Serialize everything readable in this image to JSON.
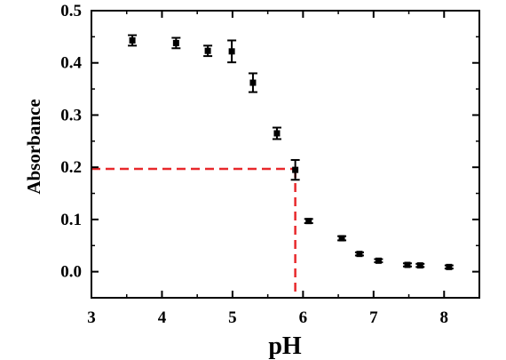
{
  "chart_data": {
    "type": "scatter",
    "title": "",
    "xlabel": "pH",
    "ylabel": "Absorbance",
    "xlim": [
      3,
      8.5
    ],
    "ylim": [
      -0.05,
      0.5
    ],
    "x_ticks": [
      3,
      4,
      5,
      6,
      7,
      8
    ],
    "x_tick_labels": [
      "3",
      "4",
      "5",
      "6",
      "7",
      "8"
    ],
    "y_ticks": [
      0.0,
      0.1,
      0.2,
      0.3,
      0.4,
      0.5
    ],
    "y_tick_labels": [
      "0.0",
      "0.1",
      "0.2",
      "0.3",
      "0.4",
      "0.5"
    ],
    "grid": false,
    "series": [
      {
        "marker": "square",
        "color": "#000000",
        "points": [
          {
            "x": 3.58,
            "y": 0.443,
            "err": 0.01
          },
          {
            "x": 4.2,
            "y": 0.438,
            "err": 0.01
          },
          {
            "x": 4.65,
            "y": 0.423,
            "err": 0.01
          },
          {
            "x": 4.99,
            "y": 0.422,
            "err": 0.021
          },
          {
            "x": 5.29,
            "y": 0.362,
            "err": 0.018
          },
          {
            "x": 5.63,
            "y": 0.265,
            "err": 0.011
          },
          {
            "x": 5.89,
            "y": 0.195,
            "err": 0.019
          },
          {
            "x": 6.08,
            "y": 0.097,
            "err": 0.004
          },
          {
            "x": 6.55,
            "y": 0.064,
            "err": 0.004
          },
          {
            "x": 6.8,
            "y": 0.034,
            "err": 0.003
          },
          {
            "x": 7.07,
            "y": 0.021,
            "err": 0.003
          },
          {
            "x": 7.48,
            "y": 0.013,
            "err": 0.003
          },
          {
            "x": 7.66,
            "y": 0.012,
            "err": 0.003
          },
          {
            "x": 8.07,
            "y": 0.009,
            "err": 0.003
          }
        ]
      }
    ],
    "reference_lines": {
      "color": "#e8282b",
      "style": "dashed",
      "x": 5.89,
      "y": 0.197
    }
  }
}
